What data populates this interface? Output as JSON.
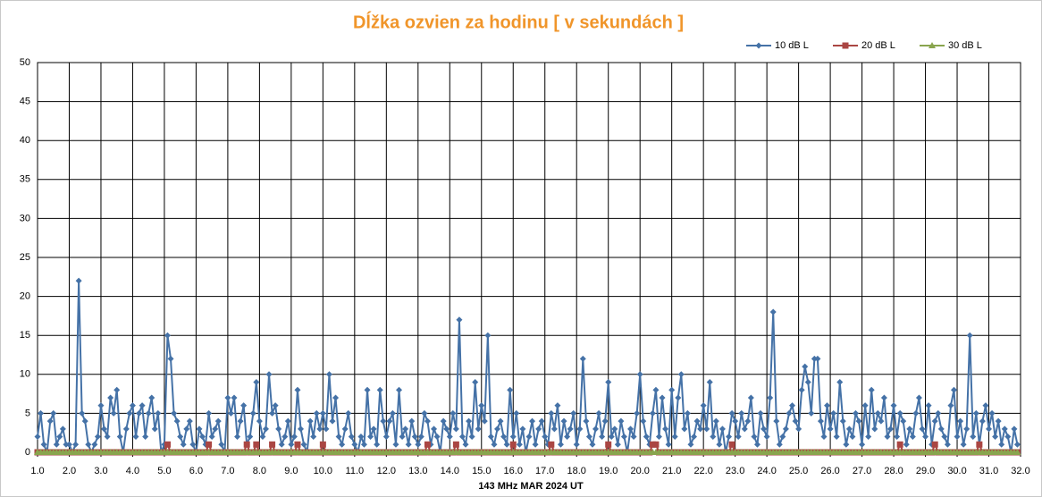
{
  "chart_data": {
    "type": "line",
    "title": "Dĺžka ozvien za hodinu [ v sekundách ]",
    "x_label": "143 MHz MAR  2024  UT",
    "xlim": [
      1,
      32
    ],
    "ylim": [
      0,
      50
    ],
    "xticks": [
      {
        "value": 1,
        "label": "1.0"
      },
      {
        "value": 2,
        "label": "2.0"
      },
      {
        "value": 3,
        "label": "3.0"
      },
      {
        "value": 4,
        "label": "4.0"
      },
      {
        "value": 5,
        "label": "5.0"
      },
      {
        "value": 6,
        "label": "6.0"
      },
      {
        "value": 7,
        "label": "7.0"
      },
      {
        "value": 8,
        "label": "8.0"
      },
      {
        "value": 9,
        "label": "9.0"
      },
      {
        "value": 10,
        "label": "10.0"
      },
      {
        "value": 11,
        "label": "11.0"
      },
      {
        "value": 12,
        "label": "12.0"
      },
      {
        "value": 13,
        "label": "13.0"
      },
      {
        "value": 14,
        "label": "14.0"
      },
      {
        "value": 15,
        "label": "15.0"
      },
      {
        "value": 16,
        "label": "16.0"
      },
      {
        "value": 17,
        "label": "17.0"
      },
      {
        "value": 18,
        "label": "18.0"
      },
      {
        "value": 19,
        "label": "19.0"
      },
      {
        "value": 20,
        "label": "20.0"
      },
      {
        "value": 21,
        "label": "21.0"
      },
      {
        "value": 22,
        "label": "22.0"
      },
      {
        "value": 23,
        "label": "23.0"
      },
      {
        "value": 24,
        "label": "24.0"
      },
      {
        "value": 25,
        "label": "25.0"
      },
      {
        "value": 26,
        "label": "26.0"
      },
      {
        "value": 27,
        "label": "27.0"
      },
      {
        "value": 28,
        "label": "28.0"
      },
      {
        "value": 29,
        "label": "29.0"
      },
      {
        "value": 30,
        "label": "30.0"
      },
      {
        "value": 31,
        "label": "31.0"
      },
      {
        "value": 32,
        "label": "32.0"
      }
    ],
    "yticks": [
      0,
      5,
      10,
      15,
      20,
      25,
      30,
      35,
      40,
      45,
      50
    ],
    "grid": true,
    "legend": "top-right",
    "x": [
      1,
      1.1,
      1.2,
      1.3,
      1.4,
      1.5,
      1.6,
      1.7,
      1.8,
      1.9,
      2,
      2.1,
      2.2,
      2.3,
      2.4,
      2.5,
      2.6,
      2.7,
      2.8,
      2.9,
      3,
      3.1,
      3.2,
      3.3,
      3.4,
      3.5,
      3.6,
      3.7,
      3.8,
      3.9,
      4,
      4.1,
      4.2,
      4.3,
      4.4,
      4.5,
      4.6,
      4.7,
      4.8,
      4.9,
      5,
      5.1,
      5.2,
      5.3,
      5.4,
      5.5,
      5.6,
      5.7,
      5.8,
      5.9,
      6,
      6.1,
      6.2,
      6.3,
      6.4,
      6.5,
      6.6,
      6.7,
      6.8,
      6.9,
      7,
      7.1,
      7.2,
      7.3,
      7.4,
      7.5,
      7.6,
      7.7,
      7.8,
      7.9,
      8,
      8.1,
      8.2,
      8.3,
      8.4,
      8.5,
      8.6,
      8.7,
      8.8,
      8.9,
      9,
      9.1,
      9.2,
      9.3,
      9.4,
      9.5,
      9.6,
      9.7,
      9.8,
      9.9,
      10,
      10.1,
      10.2,
      10.3,
      10.4,
      10.5,
      10.6,
      10.7,
      10.8,
      10.9,
      11,
      11.1,
      11.2,
      11.3,
      11.4,
      11.5,
      11.6,
      11.7,
      11.8,
      11.9,
      12,
      12.1,
      12.2,
      12.3,
      12.4,
      12.5,
      12.6,
      12.7,
      12.8,
      12.9,
      13,
      13.1,
      13.2,
      13.3,
      13.4,
      13.5,
      13.6,
      13.7,
      13.8,
      13.9,
      14,
      14.1,
      14.2,
      14.3,
      14.4,
      14.5,
      14.6,
      14.7,
      14.8,
      14.9,
      15,
      15.1,
      15.2,
      15.3,
      15.4,
      15.5,
      15.6,
      15.7,
      15.8,
      15.9,
      16,
      16.1,
      16.2,
      16.3,
      16.4,
      16.5,
      16.6,
      16.7,
      16.8,
      16.9,
      17,
      17.1,
      17.2,
      17.3,
      17.4,
      17.5,
      17.6,
      17.7,
      17.8,
      17.9,
      18,
      18.1,
      18.2,
      18.3,
      18.4,
      18.5,
      18.6,
      18.7,
      18.8,
      18.9,
      19,
      19.1,
      19.2,
      19.3,
      19.4,
      19.5,
      19.6,
      19.7,
      19.8,
      19.9,
      20,
      20.1,
      20.2,
      20.3,
      20.4,
      20.5,
      20.6,
      20.7,
      20.8,
      20.9,
      21,
      21.1,
      21.2,
      21.3,
      21.4,
      21.5,
      21.6,
      21.7,
      21.8,
      21.9,
      22,
      22.1,
      22.2,
      22.3,
      22.4,
      22.5,
      22.6,
      22.7,
      22.8,
      22.9,
      23,
      23.1,
      23.2,
      23.3,
      23.4,
      23.5,
      23.6,
      23.7,
      23.8,
      23.9,
      24,
      24.1,
      24.2,
      24.3,
      24.4,
      24.5,
      24.6,
      24.7,
      24.8,
      24.9,
      25,
      25.1,
      25.2,
      25.3,
      25.4,
      25.5,
      25.6,
      25.7,
      25.8,
      25.9,
      26,
      26.1,
      26.2,
      26.3,
      26.4,
      26.5,
      26.6,
      26.7,
      26.8,
      26.9,
      27,
      27.1,
      27.2,
      27.3,
      27.4,
      27.5,
      27.6,
      27.7,
      27.8,
      27.9,
      28,
      28.1,
      28.2,
      28.3,
      28.4,
      28.5,
      28.6,
      28.7,
      28.8,
      28.9,
      29,
      29.1,
      29.2,
      29.3,
      29.4,
      29.5,
      29.6,
      29.7,
      29.8,
      29.9,
      30,
      30.1,
      30.2,
      30.3,
      30.4,
      30.5,
      30.6,
      30.7,
      30.8,
      30.9,
      31,
      31.1,
      31.2,
      31.3,
      31.4,
      31.5,
      31.6,
      31.7,
      31.8,
      31.9
    ],
    "series": [
      {
        "name": "10 dB L",
        "color": "#4572a7",
        "marker": "diamond",
        "values": [
          2,
          5,
          1,
          0,
          4,
          5,
          1,
          2,
          3,
          1,
          1,
          0,
          1,
          22,
          5,
          4,
          1,
          0,
          1,
          2,
          6,
          3,
          2,
          7,
          5,
          8,
          2,
          0,
          3,
          5,
          6,
          2,
          5,
          6,
          2,
          5,
          7,
          3,
          5,
          0,
          1,
          15,
          12,
          5,
          4,
          2,
          1,
          3,
          4,
          1,
          0,
          3,
          2,
          1,
          5,
          2,
          3,
          4,
          1,
          0,
          7,
          5,
          7,
          2,
          4,
          6,
          1,
          2,
          5,
          9,
          4,
          2,
          3,
          10,
          5,
          6,
          3,
          1,
          2,
          4,
          1,
          2,
          8,
          3,
          1,
          0,
          4,
          2,
          5,
          3,
          5,
          3,
          10,
          4,
          7,
          2,
          1,
          3,
          5,
          2,
          1,
          0,
          2,
          1,
          8,
          2,
          3,
          1,
          8,
          4,
          2,
          4,
          5,
          1,
          8,
          2,
          3,
          1,
          4,
          2,
          1,
          2,
          5,
          4,
          1,
          3,
          2,
          0,
          4,
          3,
          2,
          5,
          3,
          17,
          2,
          1,
          4,
          2,
          9,
          3,
          6,
          4,
          15,
          2,
          1,
          3,
          4,
          2,
          1,
          8,
          2,
          5,
          1,
          3,
          0,
          2,
          4,
          1,
          3,
          4,
          2,
          1,
          5,
          3,
          6,
          1,
          4,
          2,
          3,
          5,
          1,
          3,
          12,
          4,
          2,
          1,
          3,
          5,
          2,
          4,
          9,
          2,
          3,
          1,
          4,
          2,
          0,
          3,
          2,
          5,
          10,
          4,
          2,
          1,
          5,
          8,
          2,
          7,
          3,
          1,
          8,
          2,
          7,
          10,
          3,
          5,
          1,
          2,
          4,
          3,
          6,
          3,
          9,
          2,
          4,
          1,
          3,
          0,
          2,
          5,
          4,
          2,
          5,
          3,
          4,
          7,
          2,
          1,
          5,
          3,
          2,
          7,
          18,
          4,
          1,
          2,
          3,
          5,
          6,
          4,
          3,
          8,
          11,
          9,
          5,
          12,
          12,
          4,
          2,
          6,
          3,
          5,
          2,
          9,
          4,
          1,
          3,
          2,
          5,
          4,
          1,
          6,
          2,
          8,
          3,
          5,
          4,
          7,
          2,
          3,
          6,
          2,
          5,
          4,
          1,
          3,
          2,
          5,
          7,
          3,
          2,
          6,
          1,
          4,
          5,
          3,
          2,
          1,
          6,
          8,
          2,
          4,
          1,
          3,
          15,
          2,
          5,
          1,
          4,
          6,
          3,
          5,
          2,
          4,
          1,
          3,
          2,
          0,
          3,
          1
        ]
      },
      {
        "name": "20 dB L",
        "color": "#aa4643",
        "marker": "square",
        "values": [
          0,
          0,
          0,
          0,
          0,
          0,
          0,
          0,
          0,
          0,
          0,
          0,
          0,
          0,
          0,
          0,
          0,
          0,
          0,
          0,
          0,
          0,
          0,
          0,
          0,
          0,
          0,
          0,
          0,
          0,
          0,
          0,
          0,
          0,
          0,
          0,
          0,
          0,
          0,
          0,
          0,
          1,
          0,
          0,
          0,
          0,
          0,
          0,
          0,
          0,
          0,
          0,
          0,
          0,
          1,
          0,
          0,
          0,
          0,
          0,
          0,
          0,
          0,
          0,
          0,
          0,
          1,
          0,
          0,
          1,
          0,
          0,
          0,
          0,
          1,
          0,
          0,
          0,
          0,
          0,
          0,
          0,
          1,
          0,
          0,
          0,
          0,
          0,
          0,
          0,
          1,
          0,
          0,
          0,
          0,
          0,
          0,
          0,
          0,
          0,
          0,
          0,
          0,
          0,
          0,
          0,
          0,
          0,
          0,
          0,
          0,
          0,
          0,
          0,
          0,
          0,
          0,
          0,
          0,
          0,
          0,
          0,
          0,
          1,
          0,
          0,
          0,
          0,
          0,
          0,
          0,
          0,
          1,
          0,
          0,
          0,
          0,
          0,
          0,
          0,
          0,
          0,
          0,
          0,
          0,
          0,
          0,
          0,
          0,
          0,
          1,
          0,
          0,
          0,
          0,
          0,
          0,
          0,
          0,
          0,
          0,
          0,
          1,
          0,
          0,
          0,
          0,
          0,
          0,
          0,
          0,
          0,
          0,
          0,
          0,
          0,
          0,
          0,
          0,
          0,
          1,
          0,
          0,
          0,
          0,
          0,
          0,
          0,
          0,
          0,
          0,
          0,
          0,
          0,
          1,
          1,
          0,
          0,
          0,
          0,
          0,
          0,
          0,
          0,
          0,
          0,
          0,
          0,
          0,
          0,
          0,
          0,
          0,
          0,
          0,
          0,
          0,
          0,
          0,
          1,
          0,
          0,
          0,
          0,
          0,
          0,
          0,
          0,
          0,
          0,
          0,
          0,
          0,
          0,
          0,
          0,
          0,
          0,
          0,
          0,
          0,
          0,
          0,
          0,
          0,
          0,
          0,
          0,
          0,
          0,
          0,
          0,
          0,
          0,
          0,
          0,
          0,
          0,
          0,
          0,
          0,
          0,
          0,
          0,
          0,
          0,
          0,
          0,
          0,
          0,
          0,
          0,
          1,
          0,
          0,
          0,
          0,
          0,
          0,
          0,
          0,
          0,
          0,
          1,
          0,
          0,
          0,
          0,
          0,
          0,
          0,
          0,
          0,
          0,
          0,
          0,
          0,
          1,
          0,
          0,
          0,
          0,
          0,
          0,
          0,
          0,
          0,
          0,
          0,
          0
        ]
      },
      {
        "name": "30 dB L",
        "color": "#89a54e",
        "marker": "triangle",
        "values": [
          0,
          0,
          0,
          0,
          0,
          0,
          0,
          0,
          0,
          0,
          0,
          0,
          0,
          0,
          0,
          0,
          0,
          0,
          0,
          0,
          0,
          0,
          0,
          0,
          0,
          0,
          0,
          0,
          0,
          0,
          0,
          0,
          0,
          0,
          0,
          0,
          0,
          0,
          0,
          0,
          0,
          0,
          0,
          0,
          0,
          0,
          0,
          0,
          0,
          0,
          0,
          0,
          0,
          0,
          0,
          0,
          0,
          0,
          0,
          0,
          0,
          0,
          0,
          0,
          0,
          0,
          0,
          0,
          0,
          0,
          0,
          0,
          0,
          0,
          0,
          0,
          0,
          0,
          0,
          0,
          0,
          0,
          0,
          0,
          0,
          0,
          0,
          0,
          0,
          0,
          0,
          0,
          0,
          0,
          0,
          0,
          0,
          0,
          0,
          0,
          0,
          0,
          0,
          0,
          0,
          0,
          0,
          0,
          0,
          0,
          0,
          0,
          0,
          0,
          0,
          0,
          0,
          0,
          0,
          0,
          0,
          0,
          0,
          0,
          0,
          0,
          0,
          0,
          0,
          0,
          0,
          0,
          0,
          0,
          0,
          0,
          0,
          0,
          0,
          0,
          0,
          0,
          0,
          0,
          0,
          0,
          0,
          0,
          0,
          0,
          0,
          0,
          0,
          0,
          0,
          0,
          0,
          0,
          0,
          0,
          0,
          0,
          0,
          0,
          0,
          0,
          0,
          0,
          0,
          0,
          0,
          0,
          0,
          0,
          0,
          0,
          0,
          0,
          0,
          0,
          0,
          0,
          0,
          0,
          0,
          0,
          0,
          0,
          0,
          0,
          0,
          0,
          0,
          0,
          0,
          0,
          0,
          0,
          0,
          0,
          0,
          0,
          0,
          0,
          0,
          0,
          0,
          0,
          0,
          0,
          0,
          0,
          0,
          0,
          0,
          0,
          0,
          0,
          0,
          0,
          0,
          0,
          0,
          0,
          0,
          0,
          0,
          0,
          0,
          0,
          0,
          0,
          0,
          0,
          0,
          0,
          0,
          0,
          0,
          0,
          0,
          0,
          0,
          0,
          0,
          0,
          0,
          0,
          0,
          0,
          0,
          0,
          0,
          0,
          0,
          0,
          0,
          0,
          0,
          0,
          0,
          0,
          0,
          0,
          0,
          0,
          0,
          0,
          0,
          0,
          0,
          0,
          0,
          0,
          0,
          0,
          0,
          0,
          0,
          0,
          0,
          0,
          0,
          0,
          0,
          0,
          0,
          0,
          0,
          0,
          0,
          0,
          0,
          0,
          0,
          0,
          0,
          0,
          0,
          0,
          0,
          0,
          0,
          0,
          0,
          0,
          0,
          0,
          0,
          0
        ]
      }
    ]
  }
}
